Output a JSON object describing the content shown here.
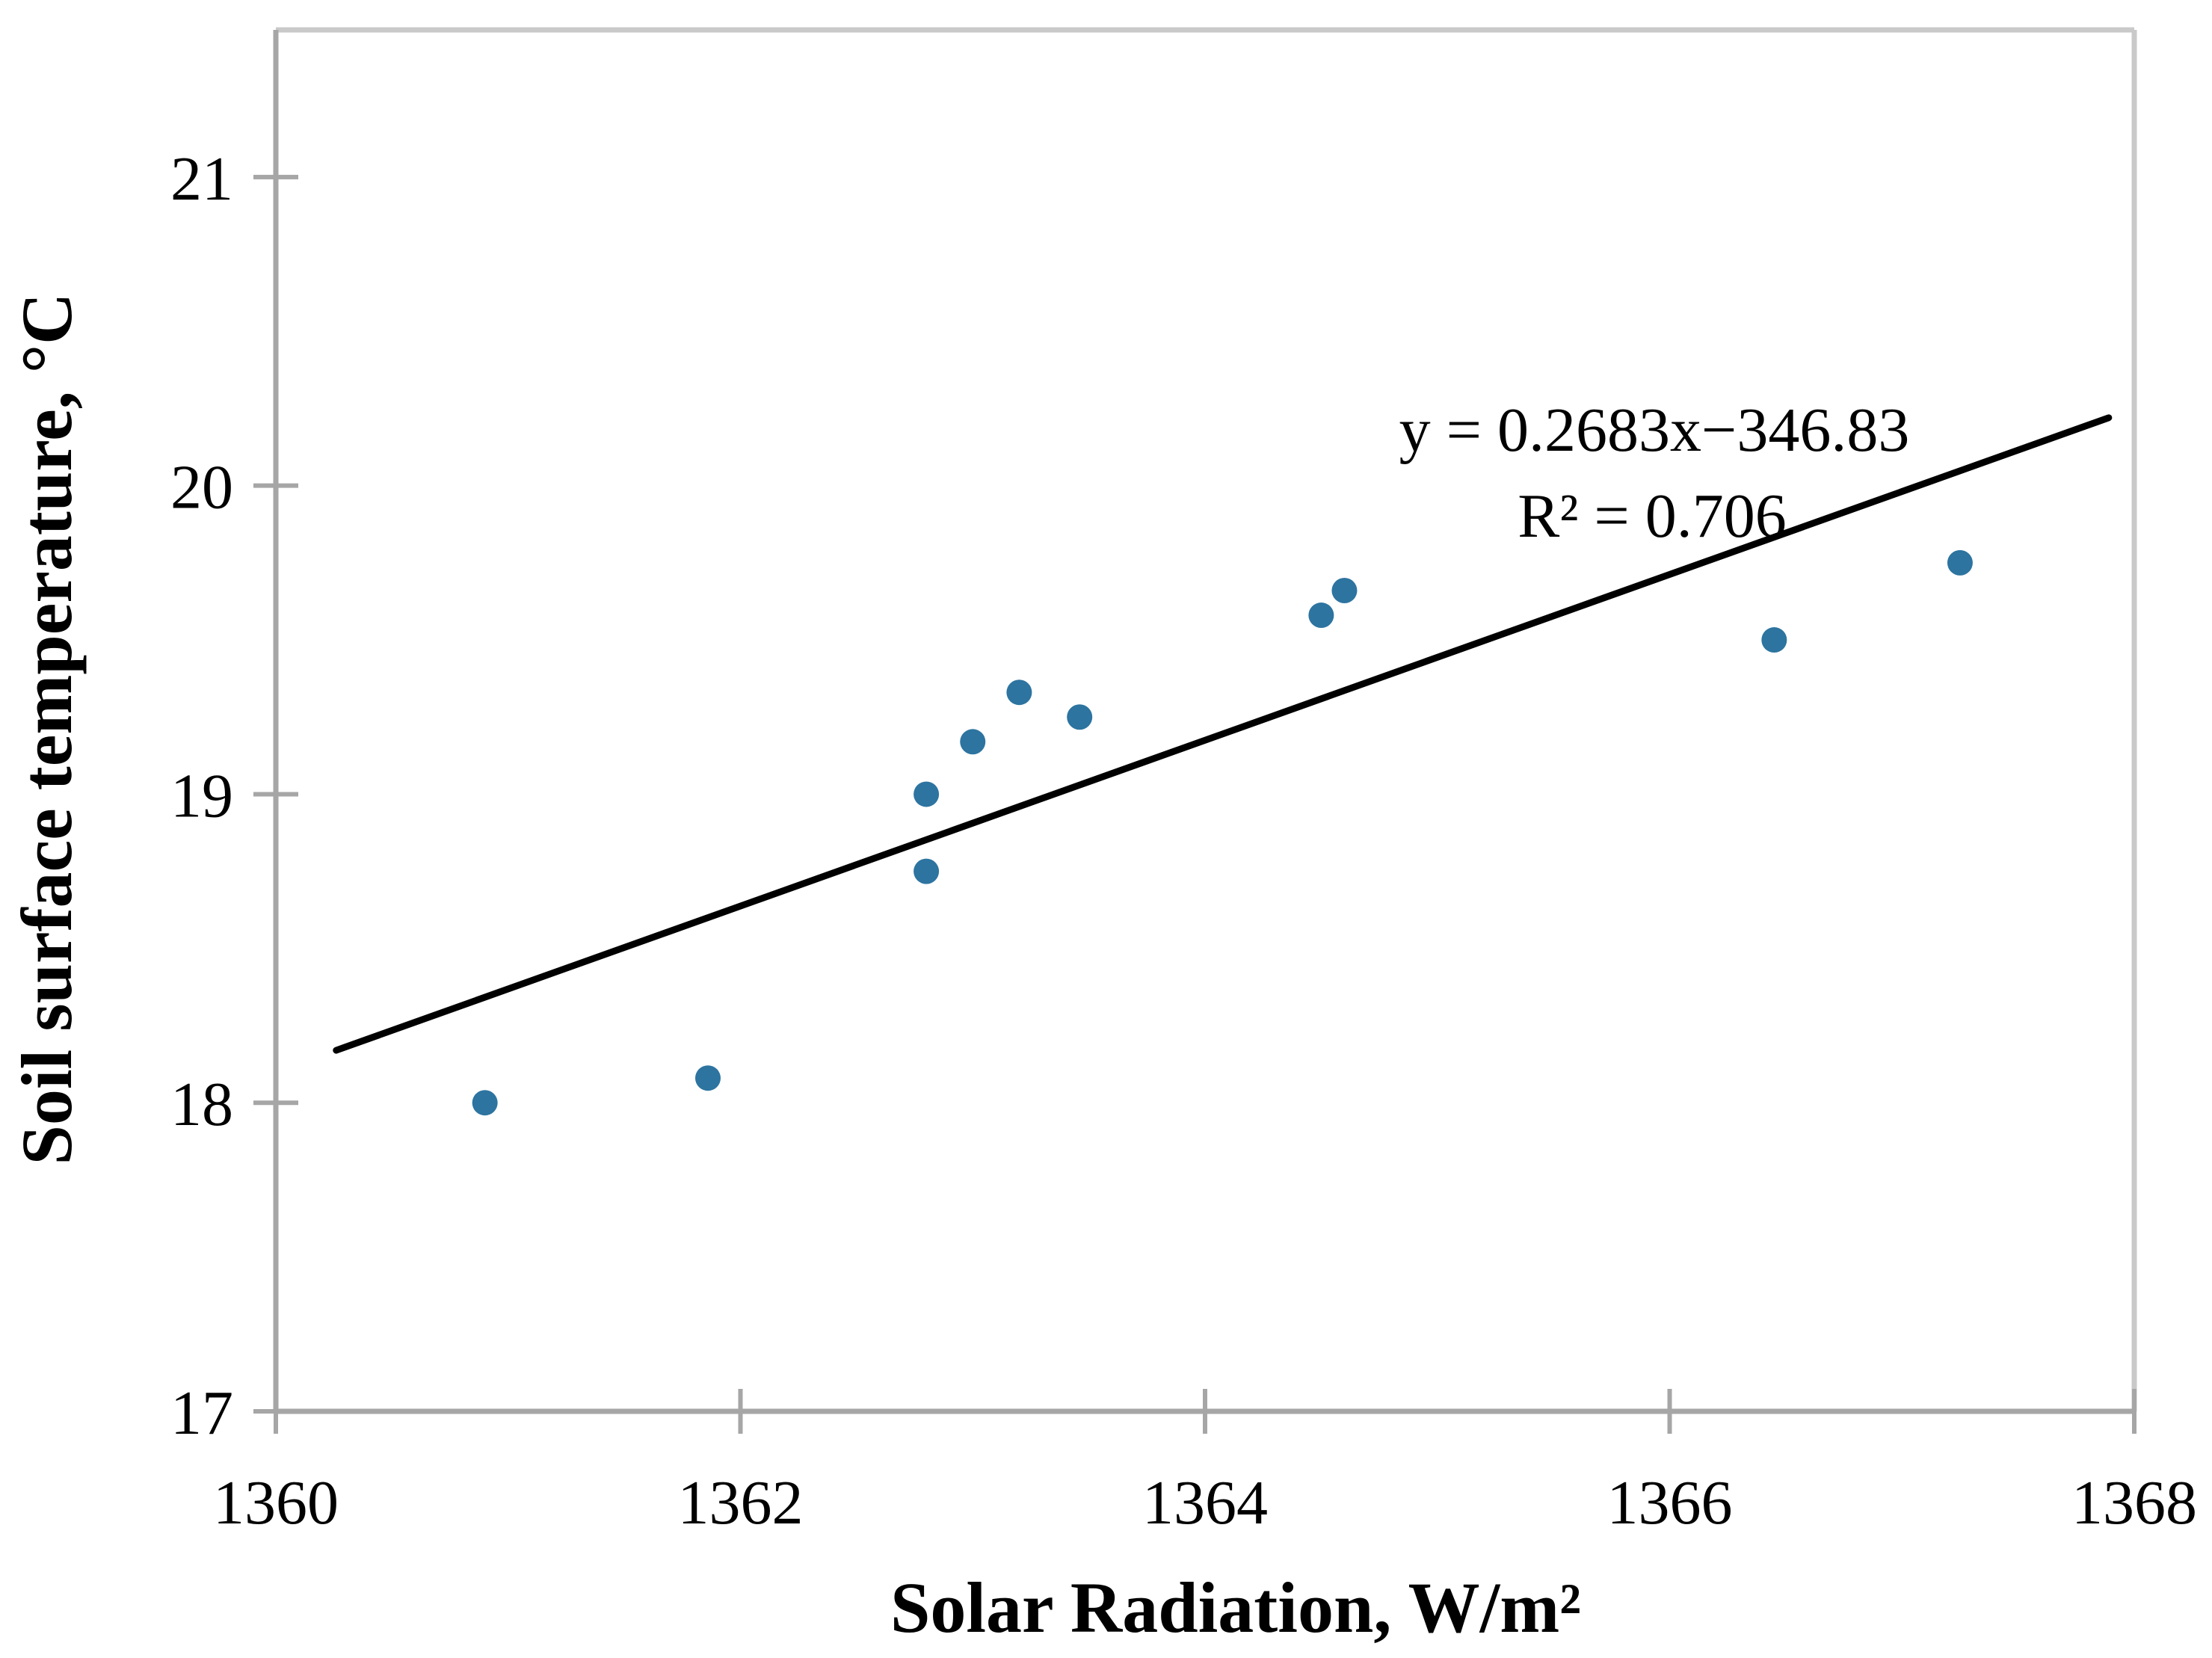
{
  "chart_data": {
    "type": "scatter",
    "title": "",
    "xlabel": "Solar Radiation, W/m²",
    "ylabel": "Soil surface temperature, °C",
    "xlim": [
      1360,
      1368
    ],
    "ylim": [
      17,
      21.477
    ],
    "x_ticks": [
      1360,
      1362,
      1364,
      1366,
      1368
    ],
    "y_ticks": [
      17,
      18,
      19,
      20,
      21
    ],
    "grid": false,
    "legend_position": "none",
    "points": [
      [
        1360.9,
        18.0
      ],
      [
        1361.86,
        18.08
      ],
      [
        1362.8,
        18.75
      ],
      [
        1362.8,
        19.0
      ],
      [
        1363.0,
        19.17
      ],
      [
        1363.2,
        19.33
      ],
      [
        1363.46,
        19.25
      ],
      [
        1364.5,
        19.58
      ],
      [
        1364.6,
        19.66
      ],
      [
        1366.45,
        19.5
      ],
      [
        1367.25,
        19.75
      ]
    ],
    "trendline": {
      "slope": 0.2683,
      "intercept": -346.83,
      "r_squared": 0.706,
      "x_start": 1360.26,
      "y_start": 18.17,
      "x_end": 1367.89,
      "y_end": 20.22,
      "equation_label": "y = 0.2683x−346.83",
      "r2_label": "R² = 0.706"
    },
    "colors": {
      "marker": "#2d74a0",
      "trendline": "#000000",
      "axis": "#a6a6a6",
      "frame": "#c9c9c9",
      "text": "#000000"
    }
  }
}
